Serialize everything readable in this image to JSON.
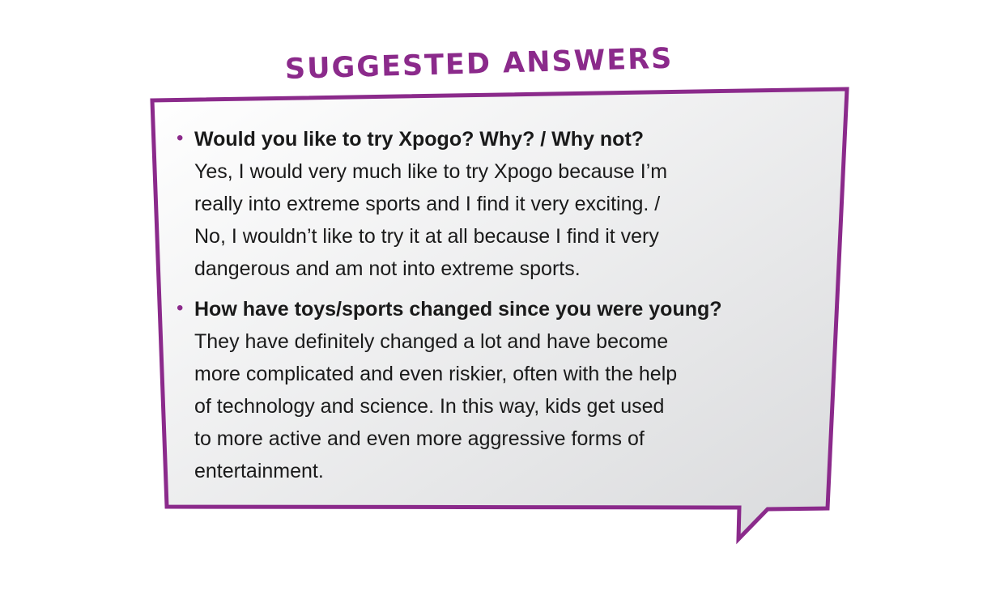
{
  "title": "SUGGESTED ANSWERS",
  "colors": {
    "accent": "#8b2a8b",
    "bubble_fill_light": "#ffffff",
    "bubble_fill_dark": "#d9dadc",
    "text": "#1a1a1a"
  },
  "items": [
    {
      "question": "Would you like to try Xpogo? Why? / Why not?",
      "answer": "Yes, I would very much like to try Xpogo because I’m\nreally into extreme sports and I find it very exciting. /\nNo, I wouldn’t like to try it at all because I find it very\ndangerous and am not into extreme sports."
    },
    {
      "question": "How have toys/sports changed since you were young?",
      "answer": "They have definitely changed a lot and have become\nmore complicated and even riskier, often with the help\nof technology and science. In this way, kids get used\nto more active and even more aggressive forms of\nentertainment."
    }
  ]
}
